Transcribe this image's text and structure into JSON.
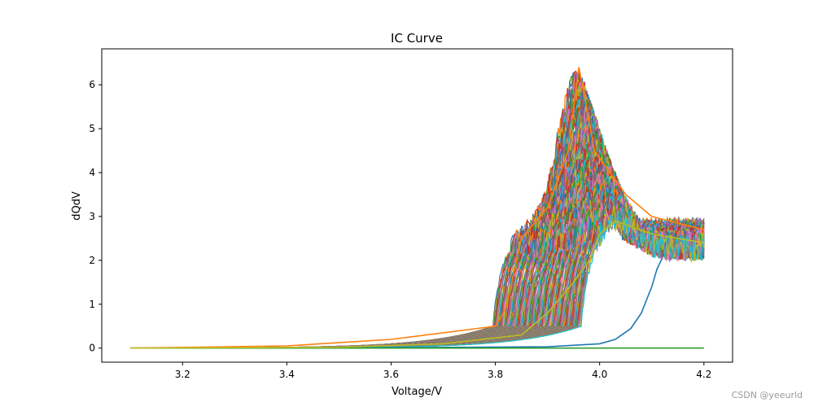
{
  "chart_data": {
    "type": "line",
    "title": "IC Curve",
    "xlabel": "Voltage/V",
    "ylabel": "dQdV",
    "xlim": [
      3.045,
      4.255
    ],
    "ylim": [
      -0.32,
      6.82
    ],
    "xticks": [
      3.2,
      3.4,
      3.6,
      3.8,
      4.0,
      4.2
    ],
    "yticks": [
      0,
      1,
      2,
      3,
      4,
      5,
      6
    ],
    "grid": false,
    "legend": "none",
    "series_count_approx": 150,
    "series_colors": [
      "#1f77b4",
      "#ff7f0e",
      "#2ca02c",
      "#d62728",
      "#9467bd",
      "#8c564b",
      "#e377c2",
      "#7f7f7f",
      "#bcbd22",
      "#17becf"
    ],
    "representative_series": [
      {
        "color": "#1f77b4",
        "x": [
          3.1,
          3.6,
          3.9,
          4.0,
          4.03,
          4.06,
          4.08,
          4.1,
          4.11,
          4.12
        ],
        "y": [
          0,
          0.01,
          0.03,
          0.1,
          0.2,
          0.45,
          0.8,
          1.4,
          1.8,
          2.05
        ]
      },
      {
        "color": "#2ca02c",
        "x": [
          3.1,
          4.2
        ],
        "y": [
          0,
          0
        ]
      },
      {
        "color": "#ff7f0e",
        "x": [
          3.1,
          3.4,
          3.6,
          3.8,
          3.82,
          3.85,
          3.9,
          3.94,
          3.96,
          3.97,
          3.99,
          4.05,
          4.1,
          4.2
        ],
        "y": [
          0,
          0.05,
          0.2,
          0.5,
          0.9,
          2.5,
          3.2,
          4.5,
          6.4,
          5.8,
          4.5,
          3.5,
          3.0,
          2.7
        ]
      },
      {
        "color": "#bcbd22",
        "x": [
          3.1,
          3.5,
          3.7,
          3.85,
          3.9,
          3.95,
          3.98,
          4.0,
          4.03,
          4.1,
          4.2
        ],
        "y": [
          0,
          0.02,
          0.1,
          0.3,
          0.8,
          1.5,
          2.0,
          2.6,
          2.9,
          2.6,
          2.4
        ]
      }
    ]
  },
  "watermark": "CSDN @yeeurld"
}
